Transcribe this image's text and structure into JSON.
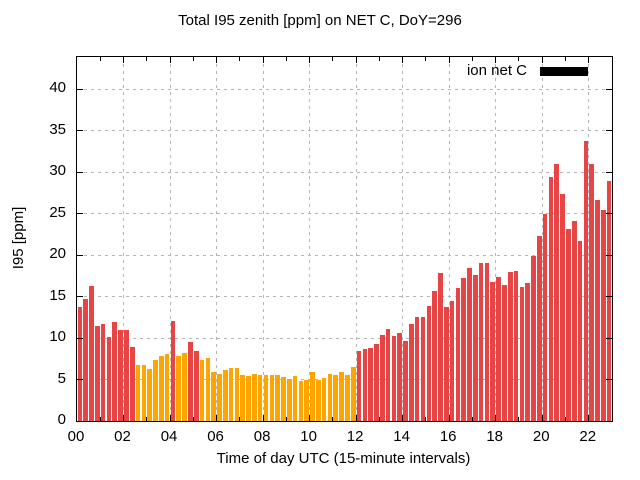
{
  "title": "Total I95 zenith [ppm] on NET C, DoY=296",
  "legend": {
    "label": "ion net C",
    "swatch_color": "#000000"
  },
  "chart_data": {
    "type": "bar",
    "title": "Total I95 zenith [ppm] on NET C, DoY=296",
    "xlabel": "Time of day UTC (15-minute intervals)",
    "ylabel": "I95 [ppm]",
    "legend_entries": [
      "ion net C"
    ],
    "legend_position": "top-right-inside",
    "grid": "dashed",
    "xlim_hours": [
      0,
      23
    ],
    "ylim": [
      0,
      43.9
    ],
    "x_tick_hours": [
      0,
      2,
      4,
      6,
      8,
      10,
      12,
      14,
      16,
      18,
      20,
      22
    ],
    "x_tick_labels": [
      "00",
      "02",
      "04",
      "06",
      "08",
      "10",
      "12",
      "14",
      "16",
      "18",
      "20",
      "22"
    ],
    "y_ticks": [
      0,
      5,
      10,
      15,
      20,
      25,
      30,
      35,
      40
    ],
    "y_tick_labels": [
      "0",
      "5",
      "10",
      "15",
      "20",
      "25",
      "30",
      "35",
      "40"
    ],
    "interval_minutes": 15,
    "colors": {
      "red": "#e74545",
      "orange": "#ffa502"
    },
    "bars": [
      {
        "time": "00:00",
        "value": 13.8,
        "color": "red"
      },
      {
        "time": "00:15",
        "value": 14.7,
        "color": "red"
      },
      {
        "time": "00:30",
        "value": 16.3,
        "color": "red"
      },
      {
        "time": "00:45",
        "value": 11.4,
        "color": "red"
      },
      {
        "time": "01:00",
        "value": 11.7,
        "color": "red"
      },
      {
        "time": "01:15",
        "value": 10.1,
        "color": "red"
      },
      {
        "time": "01:30",
        "value": 11.9,
        "color": "red"
      },
      {
        "time": "01:45",
        "value": 11.0,
        "color": "red"
      },
      {
        "time": "02:00",
        "value": 11.0,
        "color": "red"
      },
      {
        "time": "02:15",
        "value": 8.9,
        "color": "red"
      },
      {
        "time": "02:30",
        "value": 6.8,
        "color": "orange"
      },
      {
        "time": "02:45",
        "value": 6.7,
        "color": "orange"
      },
      {
        "time": "03:00",
        "value": 6.3,
        "color": "orange"
      },
      {
        "time": "03:15",
        "value": 7.3,
        "color": "orange"
      },
      {
        "time": "03:30",
        "value": 7.9,
        "color": "orange"
      },
      {
        "time": "03:45",
        "value": 8.1,
        "color": "orange"
      },
      {
        "time": "04:00",
        "value": 12.1,
        "color": "red"
      },
      {
        "time": "04:15",
        "value": 7.9,
        "color": "orange"
      },
      {
        "time": "04:30",
        "value": 8.2,
        "color": "orange"
      },
      {
        "time": "04:45",
        "value": 9.5,
        "color": "red"
      },
      {
        "time": "05:00",
        "value": 8.4,
        "color": "red"
      },
      {
        "time": "05:15",
        "value": 7.4,
        "color": "orange"
      },
      {
        "time": "05:30",
        "value": 7.6,
        "color": "orange"
      },
      {
        "time": "05:45",
        "value": 5.9,
        "color": "orange"
      },
      {
        "time": "06:00",
        "value": 5.7,
        "color": "orange"
      },
      {
        "time": "06:15",
        "value": 6.2,
        "color": "orange"
      },
      {
        "time": "06:30",
        "value": 6.4,
        "color": "orange"
      },
      {
        "time": "06:45",
        "value": 6.4,
        "color": "orange"
      },
      {
        "time": "07:00",
        "value": 5.5,
        "color": "orange"
      },
      {
        "time": "07:15",
        "value": 5.4,
        "color": "orange"
      },
      {
        "time": "07:30",
        "value": 5.7,
        "color": "orange"
      },
      {
        "time": "07:45",
        "value": 5.6,
        "color": "orange"
      },
      {
        "time": "08:00",
        "value": 5.5,
        "color": "orange"
      },
      {
        "time": "08:15",
        "value": 5.6,
        "color": "orange"
      },
      {
        "time": "08:30",
        "value": 5.5,
        "color": "orange"
      },
      {
        "time": "08:45",
        "value": 5.3,
        "color": "orange"
      },
      {
        "time": "09:00",
        "value": 5.1,
        "color": "orange"
      },
      {
        "time": "09:15",
        "value": 5.4,
        "color": "orange"
      },
      {
        "time": "09:30",
        "value": 4.8,
        "color": "orange"
      },
      {
        "time": "09:45",
        "value": 4.9,
        "color": "orange"
      },
      {
        "time": "10:00",
        "value": 5.9,
        "color": "orange"
      },
      {
        "time": "10:15",
        "value": 4.9,
        "color": "orange"
      },
      {
        "time": "10:30",
        "value": 5.2,
        "color": "orange"
      },
      {
        "time": "10:45",
        "value": 5.7,
        "color": "orange"
      },
      {
        "time": "11:00",
        "value": 5.6,
        "color": "orange"
      },
      {
        "time": "11:15",
        "value": 5.9,
        "color": "orange"
      },
      {
        "time": "11:30",
        "value": 5.6,
        "color": "orange"
      },
      {
        "time": "11:45",
        "value": 6.5,
        "color": "orange"
      },
      {
        "time": "12:00",
        "value": 8.4,
        "color": "red"
      },
      {
        "time": "12:15",
        "value": 8.7,
        "color": "red"
      },
      {
        "time": "12:30",
        "value": 8.8,
        "color": "red"
      },
      {
        "time": "12:45",
        "value": 9.3,
        "color": "red"
      },
      {
        "time": "13:00",
        "value": 10.4,
        "color": "red"
      },
      {
        "time": "13:15",
        "value": 11.1,
        "color": "red"
      },
      {
        "time": "13:30",
        "value": 10.2,
        "color": "red"
      },
      {
        "time": "13:45",
        "value": 10.6,
        "color": "red"
      },
      {
        "time": "14:00",
        "value": 9.7,
        "color": "red"
      },
      {
        "time": "14:15",
        "value": 11.7,
        "color": "red"
      },
      {
        "time": "14:30",
        "value": 12.6,
        "color": "red"
      },
      {
        "time": "14:45",
        "value": 12.6,
        "color": "red"
      },
      {
        "time": "15:00",
        "value": 13.9,
        "color": "red"
      },
      {
        "time": "15:15",
        "value": 15.7,
        "color": "red"
      },
      {
        "time": "15:30",
        "value": 17.8,
        "color": "red"
      },
      {
        "time": "15:45",
        "value": 13.8,
        "color": "red"
      },
      {
        "time": "16:00",
        "value": 14.5,
        "color": "red"
      },
      {
        "time": "16:15",
        "value": 16.0,
        "color": "red"
      },
      {
        "time": "16:30",
        "value": 17.2,
        "color": "red"
      },
      {
        "time": "16:45",
        "value": 18.5,
        "color": "red"
      },
      {
        "time": "17:00",
        "value": 17.6,
        "color": "red"
      },
      {
        "time": "17:15",
        "value": 19.1,
        "color": "red"
      },
      {
        "time": "17:30",
        "value": 19.1,
        "color": "red"
      },
      {
        "time": "17:45",
        "value": 16.8,
        "color": "red"
      },
      {
        "time": "18:00",
        "value": 17.4,
        "color": "red"
      },
      {
        "time": "18:15",
        "value": 16.4,
        "color": "red"
      },
      {
        "time": "18:30",
        "value": 18.0,
        "color": "red"
      },
      {
        "time": "18:45",
        "value": 18.1,
        "color": "red"
      },
      {
        "time": "19:00",
        "value": 16.2,
        "color": "red"
      },
      {
        "time": "19:15",
        "value": 16.6,
        "color": "red"
      },
      {
        "time": "19:30",
        "value": 19.9,
        "color": "red"
      },
      {
        "time": "19:45",
        "value": 22.3,
        "color": "red"
      },
      {
        "time": "20:00",
        "value": 25.0,
        "color": "red"
      },
      {
        "time": "20:15",
        "value": 29.4,
        "color": "red"
      },
      {
        "time": "20:30",
        "value": 31.0,
        "color": "red"
      },
      {
        "time": "20:45",
        "value": 27.4,
        "color": "red"
      },
      {
        "time": "21:00",
        "value": 23.2,
        "color": "red"
      },
      {
        "time": "21:15",
        "value": 24.1,
        "color": "red"
      },
      {
        "time": "21:30",
        "value": 21.7,
        "color": "red"
      },
      {
        "time": "21:45",
        "value": 33.8,
        "color": "red"
      },
      {
        "time": "22:00",
        "value": 31.0,
        "color": "red"
      },
      {
        "time": "22:15",
        "value": 26.7,
        "color": "red"
      },
      {
        "time": "22:30",
        "value": 25.5,
        "color": "red"
      },
      {
        "time": "22:45",
        "value": 28.9,
        "color": "red"
      }
    ]
  }
}
